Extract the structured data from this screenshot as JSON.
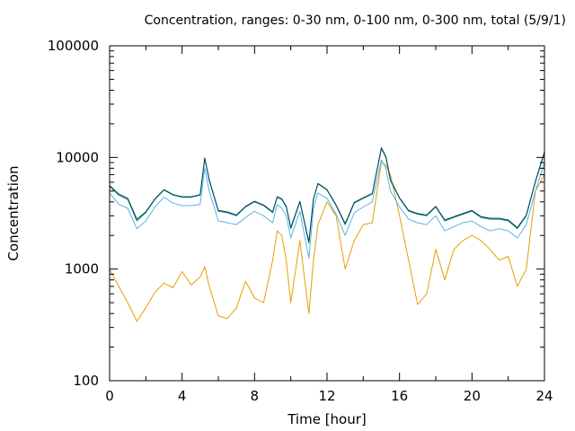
{
  "chart_data": {
    "type": "line",
    "title": "Concentration, ranges: 0-30 nm, 0-100 nm, 0-300 nm, total (5/9/1)",
    "xlabel": "Time [hour]",
    "ylabel": "Concentration",
    "xlim": [
      0,
      24
    ],
    "ylim": [
      100,
      100000
    ],
    "yscale": "log",
    "xticks": [
      0,
      4,
      8,
      12,
      16,
      20,
      24
    ],
    "xtick_labels": [
      "0",
      "4",
      "8",
      "12",
      "16",
      "20",
      "24"
    ],
    "yticks": [
      100,
      1000,
      10000,
      100000
    ],
    "ytick_labels": [
      "100",
      "1000",
      "10000",
      "100000"
    ],
    "grid": false,
    "legend": "none",
    "x": [
      0,
      0.5,
      1,
      1.5,
      2,
      2.5,
      3,
      3.5,
      4,
      4.5,
      5,
      5.25,
      5.5,
      6,
      6.5,
      7,
      7.5,
      8,
      8.5,
      9,
      9.25,
      9.5,
      9.75,
      10,
      10.5,
      11,
      11.25,
      11.5,
      12,
      12.5,
      13,
      13.5,
      14,
      14.5,
      15,
      15.25,
      15.5,
      16,
      16.5,
      17,
      17.5,
      18,
      18.5,
      19,
      19.5,
      20,
      20.5,
      21,
      21.5,
      22,
      22.5,
      23,
      23.5,
      24
    ],
    "series": [
      {
        "color": "#e69f00",
        "values": [
          1000,
          700,
          500,
          340,
          450,
          620,
          750,
          680,
          950,
          720,
          850,
          1050,
          700,
          380,
          360,
          450,
          780,
          550,
          500,
          1200,
          2200,
          2000,
          1200,
          500,
          1800,
          400,
          1200,
          2500,
          4000,
          3000,
          1000,
          1800,
          2500,
          2600,
          9000,
          8500,
          7000,
          3000,
          1200,
          480,
          600,
          1500,
          800,
          1500,
          1800,
          2000,
          1800,
          1500,
          1200,
          1300,
          700,
          1000,
          5000,
          7000
        ]
      },
      {
        "color": "#56b4e9",
        "values": [
          4800,
          3800,
          3500,
          2300,
          2700,
          3600,
          4400,
          3900,
          3700,
          3700,
          3800,
          8000,
          5000,
          2700,
          2600,
          2500,
          2900,
          3300,
          3000,
          2600,
          3800,
          3500,
          3000,
          1900,
          3300,
          1250,
          3500,
          4800,
          4300,
          3100,
          2000,
          3200,
          3600,
          4000,
          9500,
          8000,
          5000,
          3600,
          2800,
          2600,
          2500,
          3000,
          2200,
          2400,
          2600,
          2700,
          2400,
          2200,
          2300,
          2200,
          1900,
          2500,
          5000,
          9000
        ]
      },
      {
        "color": "#009e73",
        "values": [
          5500,
          4600,
          4200,
          2700,
          3200,
          4200,
          5100,
          4600,
          4400,
          4400,
          4600,
          9800,
          6200,
          3300,
          3200,
          3000,
          3600,
          4000,
          3700,
          3200,
          4400,
          4200,
          3600,
          2300,
          4000,
          1700,
          4200,
          5800,
          5100,
          3700,
          2500,
          3900,
          4300,
          4700,
          12000,
          10000,
          6200,
          4300,
          3300,
          3100,
          3000,
          3600,
          2700,
          2900,
          3100,
          3300,
          2900,
          2800,
          2800,
          2700,
          2300,
          3000,
          6000,
          11000
        ]
      },
      {
        "color": "#0a3d62",
        "values": [
          5600,
          4700,
          4300,
          2800,
          3250,
          4250,
          5150,
          4650,
          4450,
          4450,
          4650,
          9900,
          6300,
          3350,
          3250,
          3050,
          3650,
          4050,
          3750,
          3250,
          4450,
          4250,
          3650,
          2350,
          4050,
          1750,
          4250,
          5850,
          5150,
          3750,
          2550,
          3950,
          4350,
          4750,
          12200,
          10200,
          6300,
          4350,
          3350,
          3150,
          3050,
          3650,
          2750,
          2950,
          3150,
          3350,
          2950,
          2850,
          2850,
          2750,
          2350,
          3050,
          6100,
          11200
        ]
      }
    ]
  }
}
